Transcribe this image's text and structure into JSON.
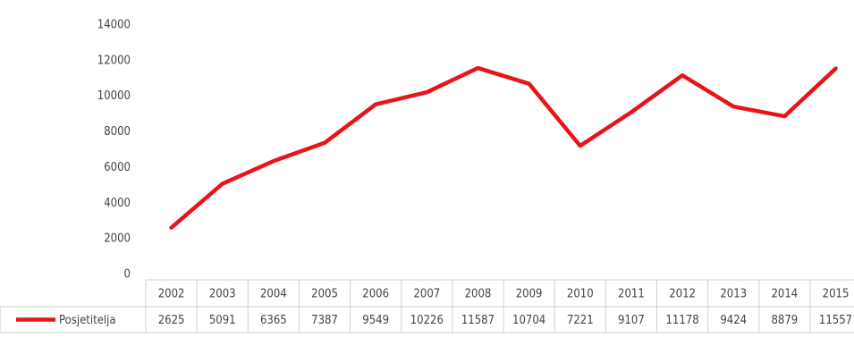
{
  "chart_data": {
    "type": "line",
    "categories": [
      "2002",
      "2003",
      "2004",
      "2005",
      "2006",
      "2007",
      "2008",
      "2009",
      "2010",
      "2011",
      "2012",
      "2013",
      "2014",
      "2015"
    ],
    "series": [
      {
        "name": "Posjetitelja",
        "color": "#e8141b",
        "values": [
          2625,
          5091,
          6365,
          7387,
          9549,
          10226,
          11587,
          10704,
          7221,
          9107,
          11178,
          9424,
          8879,
          11557
        ]
      }
    ],
    "ylim": [
      0,
      14000
    ],
    "yticks": [
      0,
      2000,
      4000,
      6000,
      8000,
      10000,
      12000,
      14000
    ],
    "grid": false,
    "data_table": true
  }
}
